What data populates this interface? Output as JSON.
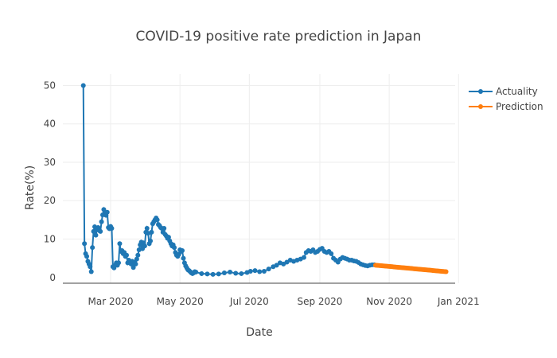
{
  "chart_data": {
    "type": "line",
    "title": "COVID-19 positive rate prediction in Japan",
    "xlabel": "Date",
    "ylabel": "Rate(%)",
    "x_range": [
      "2020-01-19",
      "2020-12-29"
    ],
    "ylim": [
      -1.5,
      53
    ],
    "x_ticks": [
      {
        "date": "2020-03-01",
        "label": "Mar 2020"
      },
      {
        "date": "2020-05-01",
        "label": "May 2020"
      },
      {
        "date": "2020-07-01",
        "label": "Jul 2020"
      },
      {
        "date": "2020-09-01",
        "label": "Sep 2020"
      },
      {
        "date": "2020-11-01",
        "label": "Nov 2020"
      },
      {
        "date": "2021-01-01",
        "label": "Jan 2021"
      }
    ],
    "y_ticks": [
      0,
      10,
      20,
      30,
      40,
      50
    ],
    "grid": true,
    "legend_position": "top-right",
    "series": [
      {
        "name": "Actuality",
        "color": "#1f77b4",
        "mode": "lines+markers",
        "points": [
          [
            "2020-02-06",
            50
          ],
          [
            "2020-02-07",
            8.8
          ],
          [
            "2020-02-08",
            6.2
          ],
          [
            "2020-02-09",
            5.5
          ],
          [
            "2020-02-10",
            4.2
          ],
          [
            "2020-02-11",
            3.5
          ],
          [
            "2020-02-12",
            2.8
          ],
          [
            "2020-02-13",
            1.5
          ],
          [
            "2020-02-14",
            7.8
          ],
          [
            "2020-02-15",
            12.0
          ],
          [
            "2020-02-16",
            13.2
          ],
          [
            "2020-02-17",
            11.0
          ],
          [
            "2020-02-18",
            12.5
          ],
          [
            "2020-02-19",
            13.0
          ],
          [
            "2020-02-20",
            12.2
          ],
          [
            "2020-02-21",
            12.0
          ],
          [
            "2020-02-22",
            14.5
          ],
          [
            "2020-02-23",
            16.3
          ],
          [
            "2020-02-24",
            17.7
          ],
          [
            "2020-02-25",
            16.8
          ],
          [
            "2020-02-26",
            16.2
          ],
          [
            "2020-02-27",
            17.0
          ],
          [
            "2020-02-28",
            13.0
          ],
          [
            "2020-02-29",
            12.7
          ],
          [
            "2020-03-01",
            13.3
          ],
          [
            "2020-03-02",
            12.8
          ],
          [
            "2020-03-03",
            2.8
          ],
          [
            "2020-03-04",
            2.5
          ],
          [
            "2020-03-05",
            3.2
          ],
          [
            "2020-03-06",
            3.8
          ],
          [
            "2020-03-07",
            3.2
          ],
          [
            "2020-03-08",
            3.8
          ],
          [
            "2020-03-09",
            8.8
          ],
          [
            "2020-03-10",
            6.8
          ],
          [
            "2020-03-11",
            7.0
          ],
          [
            "2020-03-12",
            6.2
          ],
          [
            "2020-03-13",
            6.5
          ],
          [
            "2020-03-14",
            5.5
          ],
          [
            "2020-03-15",
            5.8
          ],
          [
            "2020-03-16",
            3.8
          ],
          [
            "2020-03-17",
            4.5
          ],
          [
            "2020-03-18",
            3.8
          ],
          [
            "2020-03-19",
            3.5
          ],
          [
            "2020-03-20",
            4.2
          ],
          [
            "2020-03-21",
            2.6
          ],
          [
            "2020-03-22",
            4.0
          ],
          [
            "2020-03-23",
            3.5
          ],
          [
            "2020-03-24",
            4.8
          ],
          [
            "2020-03-25",
            5.8
          ],
          [
            "2020-03-26",
            7.2
          ],
          [
            "2020-03-27",
            8.5
          ],
          [
            "2020-03-28",
            9.2
          ],
          [
            "2020-03-29",
            7.5
          ],
          [
            "2020-03-30",
            9.0
          ],
          [
            "2020-03-31",
            8.2
          ],
          [
            "2020-04-01",
            11.8
          ],
          [
            "2020-04-02",
            12.8
          ],
          [
            "2020-04-03",
            11.5
          ],
          [
            "2020-04-04",
            8.8
          ],
          [
            "2020-04-05",
            9.5
          ],
          [
            "2020-04-06",
            11.8
          ],
          [
            "2020-04-07",
            14.0
          ],
          [
            "2020-04-08",
            14.5
          ],
          [
            "2020-04-09",
            15.0
          ],
          [
            "2020-04-10",
            15.5
          ],
          [
            "2020-04-11",
            15.0
          ],
          [
            "2020-04-12",
            13.8
          ],
          [
            "2020-04-13",
            13.5
          ],
          [
            "2020-04-14",
            13.0
          ],
          [
            "2020-04-15",
            12.8
          ],
          [
            "2020-04-16",
            11.8
          ],
          [
            "2020-04-17",
            12.8
          ],
          [
            "2020-04-18",
            11.2
          ],
          [
            "2020-04-19",
            10.8
          ],
          [
            "2020-04-20",
            10.2
          ],
          [
            "2020-04-21",
            10.5
          ],
          [
            "2020-04-22",
            9.5
          ],
          [
            "2020-04-23",
            8.8
          ],
          [
            "2020-04-24",
            8.2
          ],
          [
            "2020-04-25",
            8.5
          ],
          [
            "2020-04-26",
            7.8
          ],
          [
            "2020-04-27",
            6.5
          ],
          [
            "2020-04-28",
            5.8
          ],
          [
            "2020-04-29",
            5.5
          ],
          [
            "2020-04-30",
            6.0
          ],
          [
            "2020-05-01",
            7.2
          ],
          [
            "2020-05-02",
            6.8
          ],
          [
            "2020-05-03",
            7.0
          ],
          [
            "2020-05-04",
            5.0
          ],
          [
            "2020-05-05",
            3.8
          ],
          [
            "2020-05-06",
            3.0
          ],
          [
            "2020-05-07",
            2.5
          ],
          [
            "2020-05-08",
            2.0
          ],
          [
            "2020-05-09",
            1.8
          ],
          [
            "2020-05-10",
            1.5
          ],
          [
            "2020-05-11",
            1.2
          ],
          [
            "2020-05-12",
            1.0
          ],
          [
            "2020-05-13",
            1.2
          ],
          [
            "2020-05-14",
            1.5
          ],
          [
            "2020-05-15",
            1.4
          ],
          [
            "2020-05-20",
            1.0
          ],
          [
            "2020-05-25",
            0.9
          ],
          [
            "2020-05-30",
            0.8
          ],
          [
            "2020-06-04",
            0.9
          ],
          [
            "2020-06-09",
            1.2
          ],
          [
            "2020-06-14",
            1.4
          ],
          [
            "2020-06-19",
            1.1
          ],
          [
            "2020-06-24",
            1.0
          ],
          [
            "2020-06-29",
            1.3
          ],
          [
            "2020-07-02",
            1.6
          ],
          [
            "2020-07-06",
            1.8
          ],
          [
            "2020-07-10",
            1.5
          ],
          [
            "2020-07-14",
            1.6
          ],
          [
            "2020-07-18",
            2.2
          ],
          [
            "2020-07-22",
            2.8
          ],
          [
            "2020-07-25",
            3.2
          ],
          [
            "2020-07-28",
            3.8
          ],
          [
            "2020-07-31",
            3.5
          ],
          [
            "2020-08-03",
            4.0
          ],
          [
            "2020-08-06",
            4.5
          ],
          [
            "2020-08-09",
            4.2
          ],
          [
            "2020-08-12",
            4.5
          ],
          [
            "2020-08-15",
            4.8
          ],
          [
            "2020-08-18",
            5.2
          ],
          [
            "2020-08-20",
            6.5
          ],
          [
            "2020-08-22",
            7.0
          ],
          [
            "2020-08-24",
            6.8
          ],
          [
            "2020-08-26",
            7.2
          ],
          [
            "2020-08-28",
            6.5
          ],
          [
            "2020-08-30",
            6.8
          ],
          [
            "2020-09-01",
            7.3
          ],
          [
            "2020-09-03",
            7.6
          ],
          [
            "2020-09-05",
            6.8
          ],
          [
            "2020-09-07",
            6.5
          ],
          [
            "2020-09-09",
            6.8
          ],
          [
            "2020-09-11",
            6.2
          ],
          [
            "2020-09-13",
            5.0
          ],
          [
            "2020-09-15",
            4.5
          ],
          [
            "2020-09-17",
            4.0
          ],
          [
            "2020-09-19",
            4.8
          ],
          [
            "2020-09-21",
            5.2
          ],
          [
            "2020-09-23",
            5.0
          ],
          [
            "2020-09-25",
            4.8
          ],
          [
            "2020-09-27",
            4.5
          ],
          [
            "2020-09-29",
            4.5
          ],
          [
            "2020-10-01",
            4.3
          ],
          [
            "2020-10-03",
            4.2
          ],
          [
            "2020-10-05",
            3.9
          ],
          [
            "2020-10-07",
            3.5
          ],
          [
            "2020-10-09",
            3.3
          ],
          [
            "2020-10-11",
            3.1
          ],
          [
            "2020-10-13",
            3.0
          ],
          [
            "2020-10-15",
            3.2
          ],
          [
            "2020-10-17",
            3.3
          ],
          [
            "2020-10-19",
            3.3
          ]
        ]
      },
      {
        "name": "Prediction",
        "color": "#ff7f0e",
        "mode": "lines+markers",
        "start": [
          "2020-10-20",
          3.2
        ],
        "end": [
          "2020-12-21",
          1.5
        ]
      }
    ]
  }
}
